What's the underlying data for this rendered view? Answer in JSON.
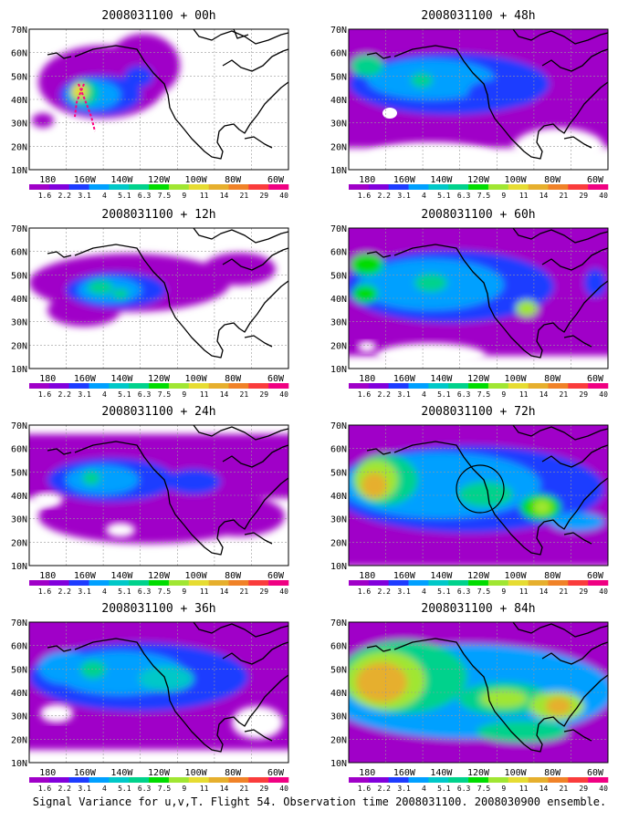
{
  "panels": [
    {
      "title": "2008031100 + 00h"
    },
    {
      "title": "2008031100 + 12h"
    },
    {
      "title": "2008031100 + 24h"
    },
    {
      "title": "2008031100 + 36h"
    },
    {
      "title": "2008031100 + 48h"
    },
    {
      "title": "2008031100 + 60h"
    },
    {
      "title": "2008031100 + 72h"
    },
    {
      "title": "2008031100 + 84h"
    }
  ],
  "lat_labels": [
    "70N",
    "60N",
    "50N",
    "40N",
    "30N",
    "20N",
    "10N"
  ],
  "lon_labels": [
    "180",
    "160W",
    "140W",
    "120W",
    "100W",
    "80W",
    "60W"
  ],
  "colorbar": {
    "labels": [
      "1.6",
      "2.2",
      "3.1",
      "4",
      "5.1",
      "6.3",
      "7.5",
      "9",
      "11",
      "14",
      "21",
      "29",
      "40"
    ],
    "colors": [
      "#a000c8",
      "#8200dc",
      "#1e3cff",
      "#00a0ff",
      "#00c8c8",
      "#00d28c",
      "#00dc00",
      "#a0e632",
      "#e6dc32",
      "#e6af2d",
      "#f08228",
      "#fa3c3c",
      "#f00082"
    ]
  },
  "caption": "Signal Variance for u,v,T. Flight 54. Observation time 2008031100. 2008030900 ensemble.",
  "colors": {
    "background": "#ffffff",
    "frame": "#000000",
    "grid": "#999999",
    "coastline": "#000000",
    "flight_track": "#ff0080"
  }
}
